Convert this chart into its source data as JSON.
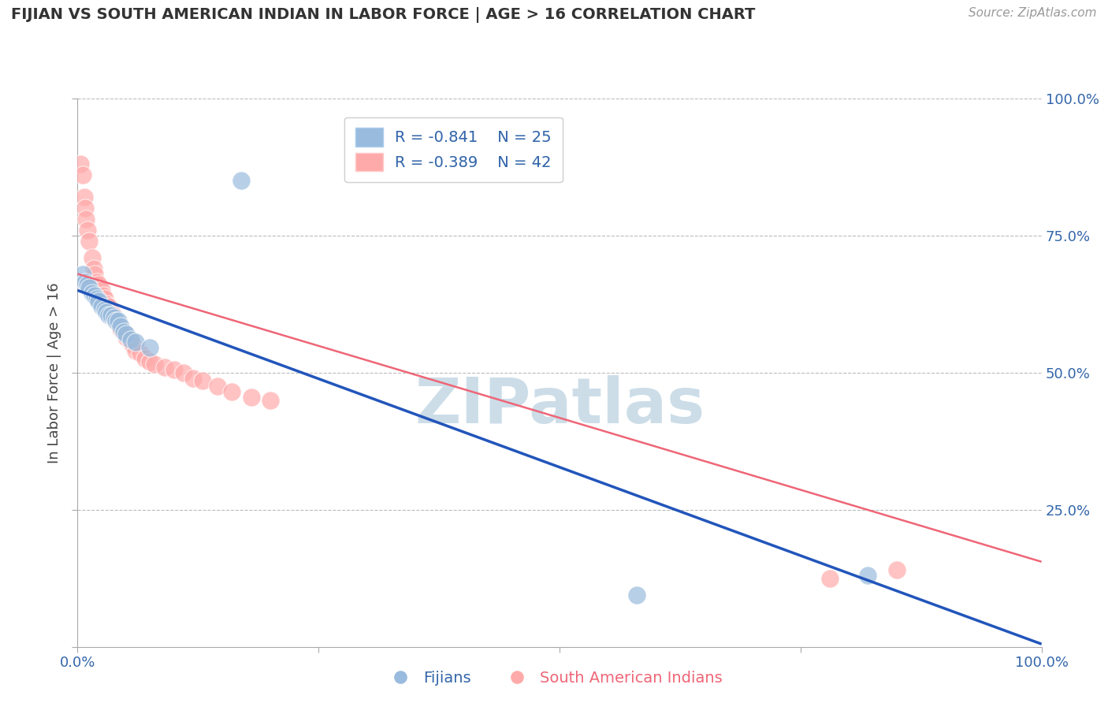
{
  "title": "FIJIAN VS SOUTH AMERICAN INDIAN IN LABOR FORCE | AGE > 16 CORRELATION CHART",
  "source_text": "Source: ZipAtlas.com",
  "ylabel": "In Labor Force | Age > 16",
  "legend_label1": "Fijians",
  "legend_label2": "South American Indians",
  "r1": -0.841,
  "n1": 25,
  "r2": -0.389,
  "n2": 42,
  "color_blue": "#99BBDD",
  "color_pink": "#FFAAAA",
  "color_blue_line": "#2255BB",
  "color_pink_line": "#EE6677",
  "color_grid": "#BBBBBB",
  "color_axis_label": "#3366AA",
  "color_title": "#333333",
  "color_source": "#999999",
  "color_watermark": "#CCDDE8",
  "xlim": [
    0,
    1
  ],
  "ylim": [
    0,
    1
  ],
  "fijian_x": [
    0.005,
    0.008,
    0.01,
    0.012,
    0.015,
    0.018,
    0.02,
    0.022,
    0.025,
    0.028,
    0.03,
    0.032,
    0.035,
    0.038,
    0.04,
    0.042,
    0.045,
    0.048,
    0.05,
    0.055,
    0.06,
    0.075,
    0.17,
    0.58,
    0.82
  ],
  "fijian_y": [
    0.68,
    0.665,
    0.66,
    0.655,
    0.645,
    0.64,
    0.635,
    0.63,
    0.62,
    0.615,
    0.61,
    0.605,
    0.605,
    0.6,
    0.595,
    0.595,
    0.585,
    0.575,
    0.57,
    0.56,
    0.555,
    0.545,
    0.85,
    0.095,
    0.13
  ],
  "sam_x": [
    0.003,
    0.005,
    0.007,
    0.008,
    0.009,
    0.01,
    0.012,
    0.015,
    0.017,
    0.018,
    0.02,
    0.022,
    0.025,
    0.027,
    0.028,
    0.03,
    0.032,
    0.035,
    0.037,
    0.04,
    0.042,
    0.045,
    0.048,
    0.05,
    0.055,
    0.058,
    0.06,
    0.065,
    0.07,
    0.075,
    0.08,
    0.09,
    0.1,
    0.11,
    0.12,
    0.13,
    0.145,
    0.16,
    0.18,
    0.2,
    0.78,
    0.85
  ],
  "sam_y": [
    0.88,
    0.86,
    0.82,
    0.8,
    0.78,
    0.76,
    0.74,
    0.71,
    0.69,
    0.68,
    0.665,
    0.66,
    0.65,
    0.64,
    0.635,
    0.625,
    0.62,
    0.61,
    0.605,
    0.595,
    0.59,
    0.58,
    0.575,
    0.565,
    0.555,
    0.55,
    0.54,
    0.535,
    0.525,
    0.52,
    0.515,
    0.51,
    0.505,
    0.5,
    0.49,
    0.485,
    0.475,
    0.465,
    0.455,
    0.45,
    0.125,
    0.14
  ],
  "blue_line_y_start": 0.65,
  "blue_line_y_end": 0.005,
  "pink_line_y_start": 0.68,
  "pink_line_y_end": 0.155
}
